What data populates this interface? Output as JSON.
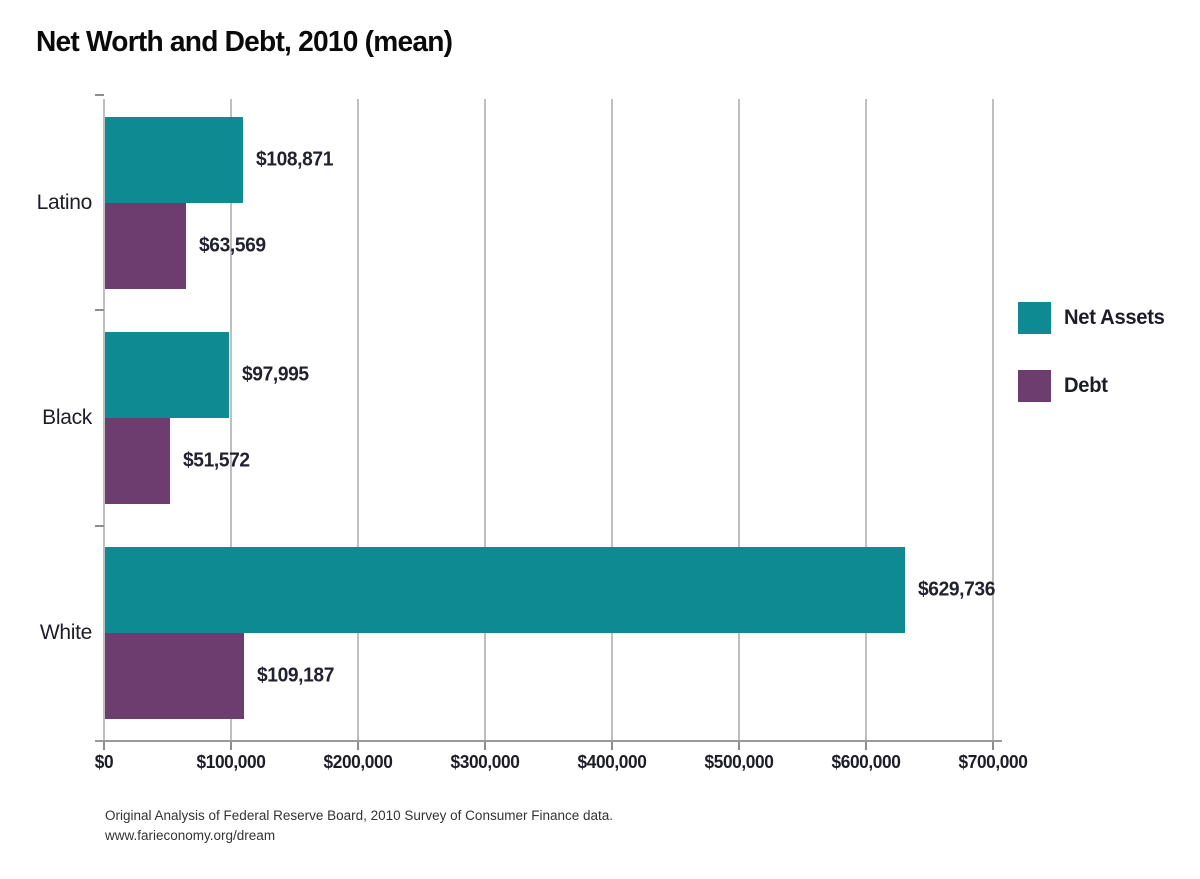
{
  "title": "Net Worth and Debt, 2010 (mean)",
  "chart_data": {
    "type": "bar",
    "orientation": "horizontal",
    "title": "Net Worth and Debt, 2010 (mean)",
    "categories": [
      "Latino",
      "Black",
      "White"
    ],
    "series": [
      {
        "name": "Net Assets",
        "color": "#0e8a93",
        "values": [
          108871,
          97995,
          629736
        ],
        "labels": [
          "$108,871",
          "$97,995",
          "$629,736"
        ]
      },
      {
        "name": "Debt",
        "color": "#6e3d70",
        "values": [
          63569,
          51572,
          109187
        ],
        "labels": [
          "$63,569",
          "$51,572",
          "$109,187"
        ]
      }
    ],
    "xlabel": "",
    "ylabel": "",
    "xlim": [
      0,
      700000
    ],
    "x_ticks": [
      "$0",
      "$100,000",
      "$200,000",
      "$300,000",
      "$400,000",
      "$500,000",
      "$600,000",
      "$700,000"
    ],
    "grid": true,
    "gridline_color": "#bfbfbf",
    "legend_position": "right"
  },
  "legend": {
    "items": [
      {
        "label": "Net Assets",
        "color": "#0e8a93"
      },
      {
        "label": "Debt",
        "color": "#6e3d70"
      }
    ]
  },
  "footer": {
    "line1": "Original Analysis of Federal Reserve Board, 2010 Survey of Consumer Finance data.",
    "line2": "www.farieconomy.org/dream"
  }
}
